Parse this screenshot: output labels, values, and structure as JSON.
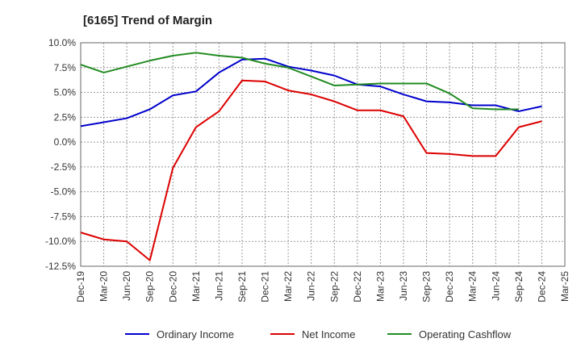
{
  "chart_data": {
    "type": "line",
    "title": "[6165]  Trend of Margin",
    "xlabel": "",
    "ylabel": "",
    "categories": [
      "Dec-19",
      "Mar-20",
      "Jun-20",
      "Sep-20",
      "Dec-20",
      "Mar-21",
      "Jun-21",
      "Sep-21",
      "Dec-21",
      "Mar-22",
      "Jun-22",
      "Sep-22",
      "Dec-22",
      "Mar-23",
      "Jun-23",
      "Sep-23",
      "Dec-23",
      "Mar-24",
      "Jun-24",
      "Sep-24",
      "Dec-24",
      "Mar-25"
    ],
    "ylim": [
      -12.5,
      10.0
    ],
    "yticks": [
      10.0,
      7.5,
      5.0,
      2.5,
      0.0,
      -2.5,
      -5.0,
      -7.5,
      -10.0,
      -12.5
    ],
    "ytick_labels": [
      "10.0%",
      "7.5%",
      "5.0%",
      "2.5%",
      "0.0%",
      "-2.5%",
      "-5.0%",
      "-7.5%",
      "-10.0%",
      "-12.5%"
    ],
    "grid": true,
    "legend_position": "bottom",
    "series": [
      {
        "name": "Ordinary Income",
        "color": "#0000cc",
        "values": [
          1.6,
          2.0,
          2.4,
          3.3,
          4.7,
          5.1,
          7.0,
          8.3,
          8.4,
          7.6,
          7.2,
          6.7,
          5.8,
          5.6,
          4.8,
          4.1,
          4.0,
          3.7,
          3.7,
          3.1,
          3.6,
          null
        ]
      },
      {
        "name": "Net Income",
        "color": "#dd0000",
        "values": [
          -9.1,
          -9.8,
          -10.0,
          -11.9,
          -2.6,
          1.5,
          3.1,
          6.2,
          6.1,
          5.2,
          4.8,
          4.1,
          3.2,
          3.2,
          2.6,
          -1.1,
          -1.2,
          -1.4,
          -1.4,
          1.5,
          2.1,
          null
        ]
      },
      {
        "name": "Operating Cashflow",
        "color": "#228b22",
        "values": [
          7.8,
          7.0,
          7.6,
          8.2,
          8.7,
          9.0,
          8.7,
          8.5,
          7.9,
          7.5,
          6.6,
          5.7,
          5.8,
          5.9,
          5.9,
          5.9,
          4.9,
          3.4,
          3.3,
          3.3,
          null,
          null
        ]
      }
    ]
  }
}
